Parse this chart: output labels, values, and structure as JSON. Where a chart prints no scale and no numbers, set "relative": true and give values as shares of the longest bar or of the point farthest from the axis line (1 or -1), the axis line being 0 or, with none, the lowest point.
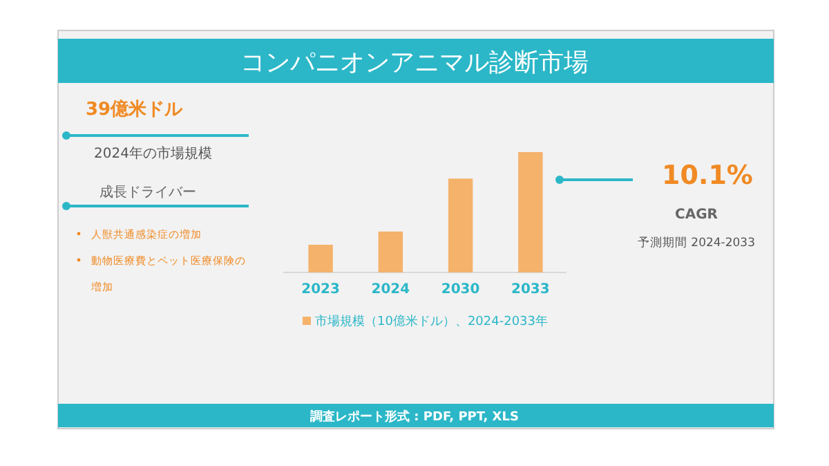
{
  "chart_data": {
    "type": "bar",
    "title": "コンパニオンアニマル診断市場",
    "categories": [
      "2023",
      "2024",
      "2030",
      "2033"
    ],
    "series": [
      {
        "name": "市場規模（10億米ドル）、2024-2033年",
        "color": "#f5b26b",
        "values": [
          0.23,
          0.34,
          0.78,
          1
        ]
      }
    ],
    "relative": true,
    "legend": "bottom",
    "annotations": [
      "39億米ドル",
      "2024年の市場規模",
      "成長ドライバー",
      "人獣共通感染症の増加",
      "動物医療費とペット医療保険の増加",
      "10.1%",
      "CAGR",
      "予測期間 2024-2033",
      "調査レポート形式 : PDF, PPT, XLS"
    ]
  }
}
